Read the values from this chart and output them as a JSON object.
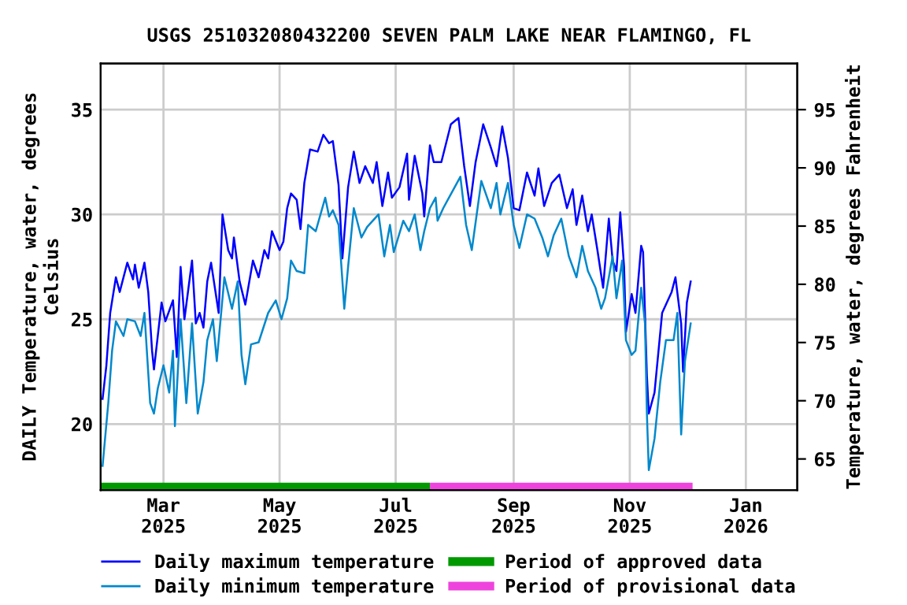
{
  "chart_data": {
    "type": "line",
    "title": "USGS 251032080432200 SEVEN PALM LAKE NEAR FLAMINGO, FL",
    "ylabel": "DAILY Temperature, water, degrees\nCelsius",
    "y2label": "Temperature, water, degrees Fahrenheit",
    "series": [
      {
        "name": "Daily maximum temperature",
        "color": "#0000ff",
        "x": [
          "2025-01-28",
          "2025-01-30",
          "2025-02-01",
          "2025-02-04",
          "2025-02-06",
          "2025-02-10",
          "2025-02-13",
          "2025-02-14",
          "2025-02-16",
          "2025-02-19",
          "2025-02-21",
          "2025-02-23",
          "2025-02-24",
          "2025-02-28",
          "2025-03-02",
          "2025-03-06",
          "2025-03-08",
          "2025-03-10",
          "2025-03-12",
          "2025-03-16",
          "2025-03-18",
          "2025-03-20",
          "2025-03-22",
          "2025-03-24",
          "2025-03-26",
          "2025-03-30",
          "2025-04-01",
          "2025-04-04",
          "2025-04-06",
          "2025-04-07",
          "2025-04-10",
          "2025-04-13",
          "2025-04-17",
          "2025-04-20",
          "2025-04-23",
          "2025-04-25",
          "2025-04-27",
          "2025-05-01",
          "2025-05-03",
          "2025-05-05",
          "2025-05-07",
          "2025-05-10",
          "2025-05-12",
          "2025-05-14",
          "2025-05-17",
          "2025-05-21",
          "2025-05-24",
          "2025-05-27",
          "2025-05-29",
          "2025-06-01",
          "2025-06-03",
          "2025-06-06",
          "2025-06-09",
          "2025-06-12",
          "2025-06-15",
          "2025-06-19",
          "2025-06-21",
          "2025-06-24",
          "2025-06-27",
          "2025-06-29",
          "2025-07-03",
          "2025-07-07",
          "2025-07-08",
          "2025-07-11",
          "2025-07-15",
          "2025-07-16",
          "2025-07-19",
          "2025-07-21",
          "2025-07-25",
          "2025-07-30",
          "2025-08-03",
          "2025-08-06",
          "2025-08-09",
          "2025-08-12",
          "2025-08-16",
          "2025-08-20",
          "2025-08-23",
          "2025-08-26",
          "2025-08-29",
          "2025-09-01",
          "2025-09-04",
          "2025-09-08",
          "2025-09-12",
          "2025-09-14",
          "2025-09-17",
          "2025-09-21",
          "2025-09-25",
          "2025-09-29",
          "2025-10-02",
          "2025-10-04",
          "2025-10-07",
          "2025-10-10",
          "2025-10-12",
          "2025-10-15",
          "2025-10-18",
          "2025-10-21",
          "2025-10-23",
          "2025-10-25",
          "2025-10-27",
          "2025-10-29",
          "2025-10-30",
          "2025-11-02",
          "2025-11-04",
          "2025-11-07",
          "2025-11-08",
          "2025-11-10",
          "2025-11-11",
          "2025-11-14",
          "2025-11-18",
          "2025-11-23",
          "2025-11-25",
          "2025-11-28",
          "2025-11-29",
          "2025-12-01",
          "2025-12-03"
        ],
        "values": [
          21.2,
          22.8,
          25.3,
          27.0,
          26.3,
          27.7,
          26.9,
          27.6,
          26.5,
          27.7,
          26.3,
          23.5,
          22.6,
          25.8,
          24.9,
          25.9,
          23.2,
          27.5,
          25.0,
          27.8,
          24.8,
          25.3,
          24.6,
          26.8,
          27.7,
          25.3,
          30.0,
          28.3,
          27.9,
          28.9,
          26.8,
          25.7,
          27.8,
          27.0,
          28.3,
          27.9,
          29.2,
          28.3,
          28.7,
          30.3,
          31.0,
          30.7,
          29.3,
          31.5,
          33.1,
          33.0,
          33.8,
          33.4,
          33.5,
          31.4,
          27.9,
          31.3,
          33.0,
          31.5,
          32.3,
          31.5,
          32.5,
          30.4,
          32.0,
          30.8,
          31.3,
          32.9,
          30.7,
          32.8,
          31.0,
          29.9,
          33.3,
          32.5,
          32.5,
          34.3,
          34.6,
          32.3,
          30.4,
          32.5,
          34.3,
          33.2,
          32.3,
          34.2,
          32.7,
          30.3,
          30.2,
          32.0,
          30.9,
          32.2,
          30.4,
          31.5,
          31.9,
          30.3,
          31.2,
          29.5,
          30.9,
          29.2,
          30.0,
          28.3,
          26.5,
          29.8,
          27.8,
          27.3,
          30.1,
          27.5,
          24.4,
          26.2,
          25.3,
          28.5,
          28.2,
          22.3,
          20.5,
          21.5,
          25.3,
          26.3,
          27.0,
          24.8,
          22.5,
          25.8,
          26.8
        ]
      },
      {
        "name": "Daily minimum temperature",
        "color": "#0088cc",
        "x": [
          "2025-01-28",
          "2025-01-31",
          "2025-02-02",
          "2025-02-04",
          "2025-02-08",
          "2025-02-10",
          "2025-02-14",
          "2025-02-17",
          "2025-02-19",
          "2025-02-22",
          "2025-02-24",
          "2025-02-26",
          "2025-03-01",
          "2025-03-04",
          "2025-03-06",
          "2025-03-07",
          "2025-03-10",
          "2025-03-13",
          "2025-03-16",
          "2025-03-19",
          "2025-03-22",
          "2025-03-24",
          "2025-03-27",
          "2025-03-29",
          "2025-04-02",
          "2025-04-06",
          "2025-04-09",
          "2025-04-11",
          "2025-04-13",
          "2025-04-16",
          "2025-04-20",
          "2025-04-25",
          "2025-04-29",
          "2025-05-02",
          "2025-05-05",
          "2025-05-07",
          "2025-05-10",
          "2025-05-14",
          "2025-05-16",
          "2025-05-20",
          "2025-05-25",
          "2025-05-27",
          "2025-05-29",
          "2025-06-01",
          "2025-06-04",
          "2025-06-06",
          "2025-06-09",
          "2025-06-13",
          "2025-06-16",
          "2025-06-22",
          "2025-06-25",
          "2025-06-28",
          "2025-06-30",
          "2025-07-05",
          "2025-07-08",
          "2025-07-11",
          "2025-07-14",
          "2025-07-16",
          "2025-07-19",
          "2025-07-22",
          "2025-07-23",
          "2025-07-26",
          "2025-08-01",
          "2025-08-04",
          "2025-08-07",
          "2025-08-10",
          "2025-08-15",
          "2025-08-20",
          "2025-08-23",
          "2025-08-25",
          "2025-08-29",
          "2025-09-01",
          "2025-09-04",
          "2025-09-08",
          "2025-09-12",
          "2025-09-16",
          "2025-09-19",
          "2025-09-22",
          "2025-09-26",
          "2025-09-30",
          "2025-10-04",
          "2025-10-07",
          "2025-10-10",
          "2025-10-14",
          "2025-10-17",
          "2025-10-19",
          "2025-10-23",
          "2025-10-25",
          "2025-10-28",
          "2025-10-30",
          "2025-11-02",
          "2025-11-04",
          "2025-11-07",
          "2025-11-09",
          "2025-11-10",
          "2025-11-11",
          "2025-11-14",
          "2025-11-17",
          "2025-11-20",
          "2025-11-24",
          "2025-11-26",
          "2025-11-28",
          "2025-11-30",
          "2025-12-03"
        ],
        "values": [
          18.0,
          21.0,
          23.5,
          24.9,
          24.2,
          25.0,
          24.9,
          24.2,
          25.3,
          21.0,
          20.5,
          21.7,
          22.8,
          21.5,
          23.5,
          19.9,
          25.0,
          21.0,
          24.8,
          20.5,
          22.0,
          24.0,
          25.0,
          23.0,
          27.0,
          25.5,
          26.8,
          23.3,
          21.9,
          23.8,
          23.9,
          25.3,
          25.9,
          25.0,
          26.0,
          27.8,
          27.3,
          27.2,
          29.5,
          29.2,
          30.8,
          29.9,
          30.2,
          29.5,
          25.5,
          27.5,
          30.3,
          28.9,
          29.4,
          30.0,
          28.0,
          29.5,
          28.2,
          29.7,
          29.2,
          30.0,
          28.3,
          29.2,
          30.3,
          30.8,
          29.7,
          30.3,
          31.3,
          31.8,
          29.5,
          28.3,
          31.6,
          30.3,
          31.5,
          30.0,
          31.5,
          29.5,
          28.4,
          30.0,
          29.8,
          28.9,
          28.0,
          29.0,
          29.8,
          28.0,
          27.0,
          28.5,
          27.3,
          26.5,
          25.5,
          26.0,
          28.0,
          26.0,
          27.8,
          24.0,
          23.3,
          23.5,
          26.5,
          24.8,
          20.5,
          17.8,
          19.3,
          22.0,
          24.0,
          24.0,
          25.3,
          19.5,
          23.0,
          24.8
        ]
      },
      {
        "name": "Period of approved data",
        "type": "area",
        "color": "#009900",
        "x": [
          "2025-01-27",
          "2025-07-19"
        ],
        "values": [
          17.2,
          17.2
        ]
      },
      {
        "name": "Period of provisional data",
        "type": "area",
        "color": "#ee44dd",
        "x": [
          "2025-07-19",
          "2025-12-04"
        ],
        "values": [
          17.2,
          17.2
        ]
      }
    ],
    "xlim": [
      "2025-01-27",
      "2026-01-28"
    ],
    "xticks": [
      {
        "value": "2025-03-01",
        "label": "Mar\n2025"
      },
      {
        "value": "2025-05-01",
        "label": "May\n2025"
      },
      {
        "value": "2025-07-01",
        "label": "Jul\n2025"
      },
      {
        "value": "2025-09-01",
        "label": "Sep\n2025"
      },
      {
        "value": "2025-11-01",
        "label": "Nov\n2025"
      },
      {
        "value": "2026-01-01",
        "label": "Jan\n2026"
      }
    ],
    "ylim": [
      16.85,
      37.2
    ],
    "yticks": [
      20,
      25,
      30,
      35
    ],
    "y2lim": [
      62.33,
      98.96
    ],
    "y2ticks": [
      65,
      70,
      75,
      80,
      85,
      90,
      95
    ],
    "grid": true,
    "legend": "bottom",
    "line_style": "solid"
  }
}
